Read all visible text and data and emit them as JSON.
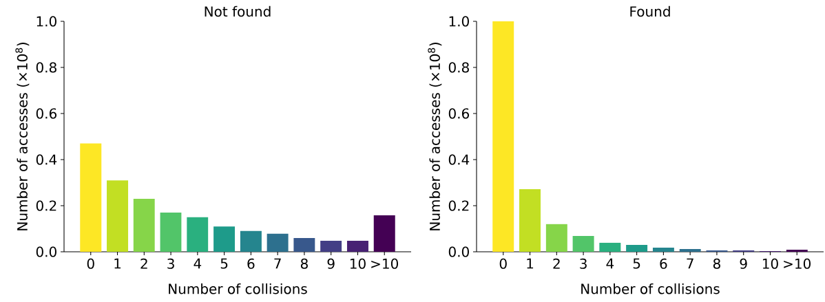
{
  "chart_data": [
    {
      "type": "bar",
      "title": "Not found",
      "xlabel": "Number of collisions",
      "ylabel": "Number of accesses (×10$^{8}$)",
      "categories": [
        "0",
        "1",
        "2",
        "3",
        "4",
        "5",
        "6",
        "7",
        "8",
        "9",
        "10",
        ">10"
      ],
      "values": [
        0.47,
        0.31,
        0.23,
        0.17,
        0.15,
        0.11,
        0.09,
        0.078,
        0.06,
        0.048,
        0.048,
        0.158
      ],
      "colors": [
        "#fde725",
        "#c2df23",
        "#86d549",
        "#52c569",
        "#2ab07f",
        "#1e9b8a",
        "#25858e",
        "#2d708e",
        "#38588c",
        "#433e85",
        "#482173",
        "#440154"
      ],
      "ylim": [
        0,
        1
      ],
      "yticks": [
        {
          "value": 0,
          "label": "0.0"
        },
        {
          "value": 0.2,
          "label": "0.2"
        },
        {
          "value": 0.4,
          "label": "0.4"
        },
        {
          "value": 0.6,
          "label": "0.6"
        },
        {
          "value": 0.8,
          "label": "0.8"
        },
        {
          "value": 1,
          "label": "1.0"
        }
      ]
    },
    {
      "type": "bar",
      "title": "Found",
      "xlabel": "Number of collisions",
      "ylabel": "Number of accesses (×10$^{8}$)",
      "categories": [
        "0",
        "1",
        "2",
        "3",
        "4",
        "5",
        "6",
        "7",
        "8",
        "9",
        "10",
        ">10"
      ],
      "values": [
        1.0,
        0.272,
        0.12,
        0.069,
        0.039,
        0.03,
        0.018,
        0.012,
        0.006,
        0.006,
        0.003,
        0.009
      ],
      "colors": [
        "#fde725",
        "#c2df23",
        "#86d549",
        "#52c569",
        "#2ab07f",
        "#1e9b8a",
        "#25858e",
        "#2d708e",
        "#38588c",
        "#433e85",
        "#482173",
        "#440154"
      ],
      "ylim": [
        0,
        1
      ],
      "yticks": [
        {
          "value": 0,
          "label": "0.0"
        },
        {
          "value": 0.2,
          "label": "0.2"
        },
        {
          "value": 0.4,
          "label": "0.4"
        },
        {
          "value": 0.6,
          "label": "0.6"
        },
        {
          "value": 0.8,
          "label": "0.8"
        },
        {
          "value": 1,
          "label": "1.0"
        }
      ]
    }
  ]
}
